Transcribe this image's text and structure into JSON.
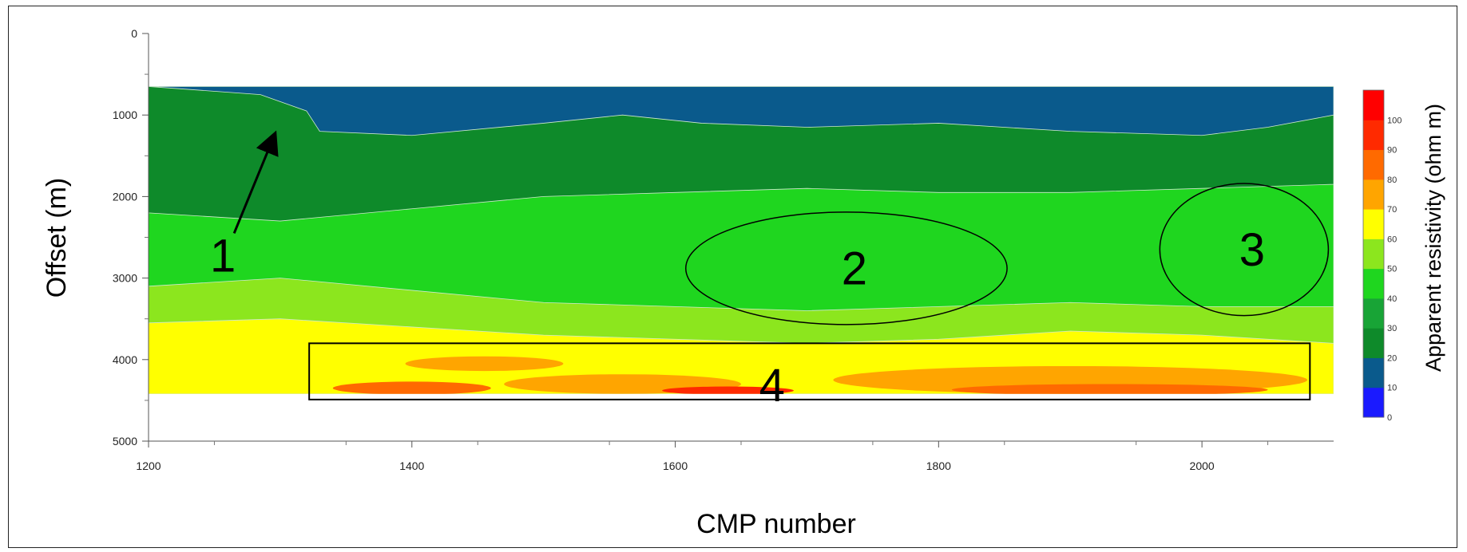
{
  "chart_data": {
    "type": "heatmap",
    "title": "",
    "xlabel": "CMP number",
    "ylabel": "Offset (m)",
    "xlim": [
      1200,
      2100
    ],
    "ylim": [
      5000,
      0
    ],
    "x_ticks": [
      1200,
      1400,
      1600,
      1800,
      2000
    ],
    "y_ticks": [
      0,
      1000,
      2000,
      3000,
      4000,
      5000
    ],
    "data_extent": {
      "x": [
        1200,
        2100
      ],
      "y": [
        650,
        4420
      ]
    },
    "colorbar": {
      "label": "Apparent   resistivity (ohm m)",
      "ticks": [
        0,
        10,
        20,
        30,
        40,
        50,
        60,
        70,
        80,
        90,
        100
      ],
      "colors": [
        "#1a1aff",
        "#0a5a8c",
        "#0e8a2a",
        "#18a436",
        "#1fd61f",
        "#8ce61e",
        "#ffff00",
        "#ffa500",
        "#ff6a00",
        "#ff2a00",
        "#ff0000"
      ]
    },
    "layers": [
      {
        "resistivity": 15,
        "color": "#0a5a8c",
        "top": [
          [
            1200,
            650
          ],
          [
            2100,
            650
          ]
        ],
        "bottom": [
          [
            1200,
            650
          ],
          [
            1285,
            750
          ],
          [
            1320,
            950
          ],
          [
            1330,
            1200
          ],
          [
            1400,
            1250
          ],
          [
            1500,
            1100
          ],
          [
            1560,
            1000
          ],
          [
            1620,
            1100
          ],
          [
            1700,
            1150
          ],
          [
            1800,
            1100
          ],
          [
            1900,
            1200
          ],
          [
            2000,
            1250
          ],
          [
            2050,
            1150
          ],
          [
            2100,
            1000
          ]
        ]
      },
      {
        "resistivity": 25,
        "color": "#0e8a2a",
        "top": null,
        "bottom": [
          [
            1200,
            2200
          ],
          [
            1300,
            2300
          ],
          [
            1400,
            2150
          ],
          [
            1500,
            2000
          ],
          [
            1600,
            1950
          ],
          [
            1700,
            1900
          ],
          [
            1800,
            1950
          ],
          [
            1900,
            1950
          ],
          [
            2000,
            1900
          ],
          [
            2100,
            1850
          ]
        ]
      },
      {
        "resistivity": 45,
        "color": "#1fd61f",
        "top": null,
        "bottom": [
          [
            1200,
            3100
          ],
          [
            1300,
            3000
          ],
          [
            1400,
            3150
          ],
          [
            1500,
            3300
          ],
          [
            1600,
            3350
          ],
          [
            1700,
            3400
          ],
          [
            1800,
            3350
          ],
          [
            1900,
            3300
          ],
          [
            2000,
            3350
          ],
          [
            2100,
            3350
          ]
        ]
      },
      {
        "resistivity": 55,
        "color": "#8ce61e",
        "top": null,
        "bottom": [
          [
            1200,
            3550
          ],
          [
            1300,
            3500
          ],
          [
            1400,
            3600
          ],
          [
            1500,
            3700
          ],
          [
            1600,
            3750
          ],
          [
            1700,
            3800
          ],
          [
            1800,
            3750
          ],
          [
            1900,
            3650
          ],
          [
            2000,
            3700
          ],
          [
            2100,
            3800
          ]
        ]
      },
      {
        "resistivity": 65,
        "color": "#ffff00",
        "top": null,
        "bottom": [
          [
            1200,
            4420
          ],
          [
            2100,
            4420
          ]
        ]
      },
      {
        "resistivity": 75,
        "color": "#ffa500",
        "top": null,
        "bottom": null
      }
    ],
    "annotations": [
      {
        "label": "1",
        "shape": "arrow",
        "from": [
          1265,
          2450
        ],
        "to": [
          1295,
          1270
        ]
      },
      {
        "label": "2",
        "shape": "ellipse",
        "center": [
          1730,
          2880
        ],
        "rx": 122,
        "ry": 690
      },
      {
        "label": "3",
        "shape": "ellipse",
        "center": [
          2032,
          2650
        ],
        "rx": 64,
        "ry": 810
      },
      {
        "label": "4",
        "shape": "rect",
        "x": [
          1322,
          2082
        ],
        "y": [
          3800,
          4490
        ]
      }
    ]
  }
}
